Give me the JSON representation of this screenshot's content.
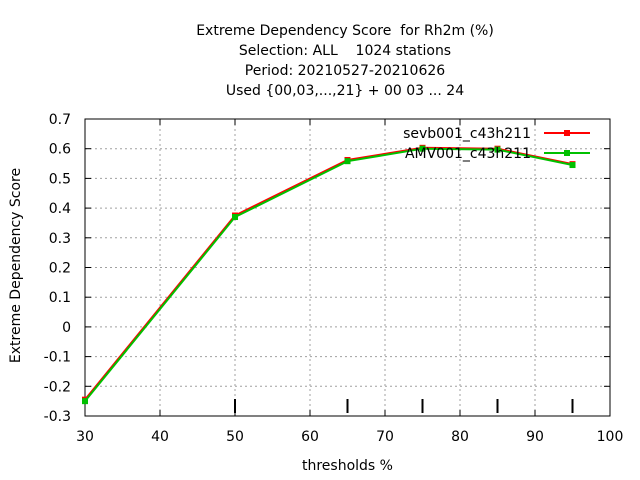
{
  "chart_data": {
    "type": "line",
    "title_lines": [
      "Extreme Dependency Score  for Rh2m (%)",
      "Selection: ALL    1024 stations",
      "Period: 20210527-20210626",
      "Used {00,03,...,21} + 00 03 ... 24"
    ],
    "xlabel": "thresholds %",
    "ylabel": "Extreme Dependency Score",
    "xlim": [
      30,
      100
    ],
    "ylim": [
      -0.3,
      0.7
    ],
    "x_ticks": [
      30,
      40,
      50,
      60,
      70,
      80,
      90,
      100
    ],
    "y_ticks": [
      -0.3,
      -0.2,
      -0.1,
      0,
      0.1,
      0.2,
      0.3,
      0.4,
      0.5,
      0.6,
      0.7
    ],
    "x_tick_labels": [
      "30",
      "40",
      "50",
      "60",
      "70",
      "80",
      "90",
      "100"
    ],
    "y_tick_labels": [
      "-0.3",
      "-0.2",
      "-0.1",
      "0",
      "0.1",
      "0.2",
      "0.3",
      "0.4",
      "0.5",
      "0.6",
      "0.7"
    ],
    "grid": true,
    "legend_position": "top-right",
    "threshold_marks": [
      50,
      65,
      75,
      85,
      95
    ],
    "series": [
      {
        "name": "sevb001_c43h211",
        "color": "#ff0000",
        "x": [
          30,
          50,
          65,
          75,
          85,
          95
        ],
        "y": [
          -0.245,
          0.375,
          0.562,
          0.603,
          0.6,
          0.548
        ]
      },
      {
        "name": "AMV001_c43h211",
        "color": "#00c000",
        "x": [
          30,
          50,
          65,
          75,
          85,
          95
        ],
        "y": [
          -0.25,
          0.37,
          0.558,
          0.6,
          0.597,
          0.545
        ]
      }
    ]
  }
}
